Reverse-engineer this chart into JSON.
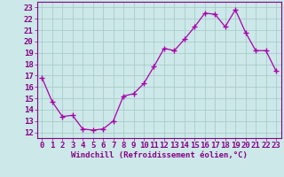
{
  "x": [
    0,
    1,
    2,
    3,
    4,
    5,
    6,
    7,
    8,
    9,
    10,
    11,
    12,
    13,
    14,
    15,
    16,
    17,
    18,
    19,
    20,
    21,
    22,
    23
  ],
  "y": [
    16.8,
    14.7,
    13.4,
    13.5,
    12.3,
    12.2,
    12.3,
    13.0,
    15.2,
    15.4,
    16.3,
    17.8,
    19.4,
    19.2,
    20.2,
    21.3,
    22.5,
    22.4,
    21.3,
    22.8,
    20.8,
    19.2,
    19.2,
    17.4
  ],
  "line_color": "#aa00aa",
  "marker": "+",
  "marker_size": 4,
  "bg_color": "#cce8e8",
  "grid_color": "#aacccc",
  "xlabel": "Windchill (Refroidissement éolien,°C)",
  "xlabel_fontsize": 6.5,
  "ylim": [
    11.5,
    23.5
  ],
  "xlim": [
    -0.5,
    23.5
  ],
  "yticks": [
    12,
    13,
    14,
    15,
    16,
    17,
    18,
    19,
    20,
    21,
    22,
    23
  ],
  "xticks": [
    0,
    1,
    2,
    3,
    4,
    5,
    6,
    7,
    8,
    9,
    10,
    11,
    12,
    13,
    14,
    15,
    16,
    17,
    18,
    19,
    20,
    21,
    22,
    23
  ],
  "tick_fontsize": 6.5,
  "tick_color": "#880088",
  "label_color": "#880088",
  "spine_color": "#880088"
}
